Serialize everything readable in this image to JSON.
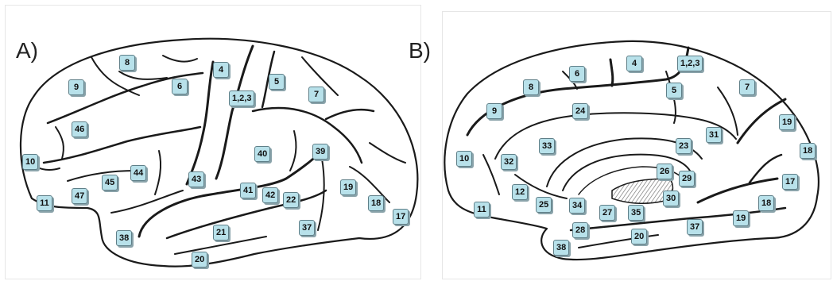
{
  "panels": [
    {
      "label": "A)",
      "view": "lateral",
      "areas": [
        "8",
        "4",
        "6",
        "9",
        "5",
        "1,2,3",
        "7",
        "46",
        "40",
        "39",
        "10",
        "44",
        "43",
        "45",
        "41",
        "42",
        "22",
        "19",
        "47",
        "11",
        "18",
        "17",
        "21",
        "37",
        "38",
        "20"
      ]
    },
    {
      "label": "B)",
      "view": "medial",
      "areas": [
        "4",
        "1,2,3",
        "6",
        "8",
        "5",
        "7",
        "9",
        "24",
        "19",
        "33",
        "31",
        "23",
        "18",
        "10",
        "32",
        "26",
        "29",
        "17",
        "12",
        "25",
        "34",
        "30",
        "27",
        "35",
        "11",
        "19",
        "28",
        "37",
        "20",
        "38"
      ]
    }
  ],
  "colors": {
    "label_fill": "#b8e1ea",
    "label_border": "#5f7f88",
    "outline": "#1a1a1a",
    "corpus_callosum_hatch": "#777777"
  }
}
